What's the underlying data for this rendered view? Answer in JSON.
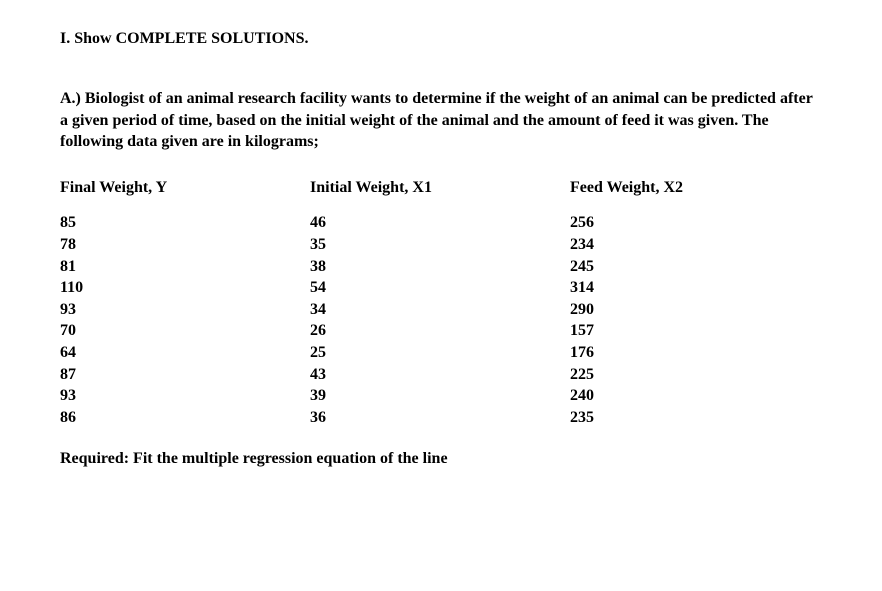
{
  "heading": "I.  Show COMPLETE SOLUTIONS.",
  "paragraph": "A.) Biologist of an animal research facility wants to determine if the weight of an animal can be predicted after a given period of time, based on the initial weight of the animal and the amount of feed it was given. The following data given are in kilograms;",
  "table": {
    "columns": [
      "Final Weight, Y",
      "Initial Weight, X1",
      "Feed Weight, X2"
    ],
    "rows": [
      [
        85,
        46,
        256
      ],
      [
        78,
        35,
        234
      ],
      [
        81,
        38,
        245
      ],
      [
        110,
        54,
        314
      ],
      [
        93,
        34,
        290
      ],
      [
        70,
        26,
        157
      ],
      [
        64,
        25,
        176
      ],
      [
        87,
        43,
        225
      ],
      [
        93,
        39,
        240
      ],
      [
        86,
        36,
        235
      ]
    ]
  },
  "required": "Required: Fit the multiple regression equation of the line",
  "style": {
    "background_color": "#ffffff",
    "text_color": "#000000",
    "font_family": "Times New Roman",
    "font_size_pt": 12,
    "font_weight": "bold"
  }
}
